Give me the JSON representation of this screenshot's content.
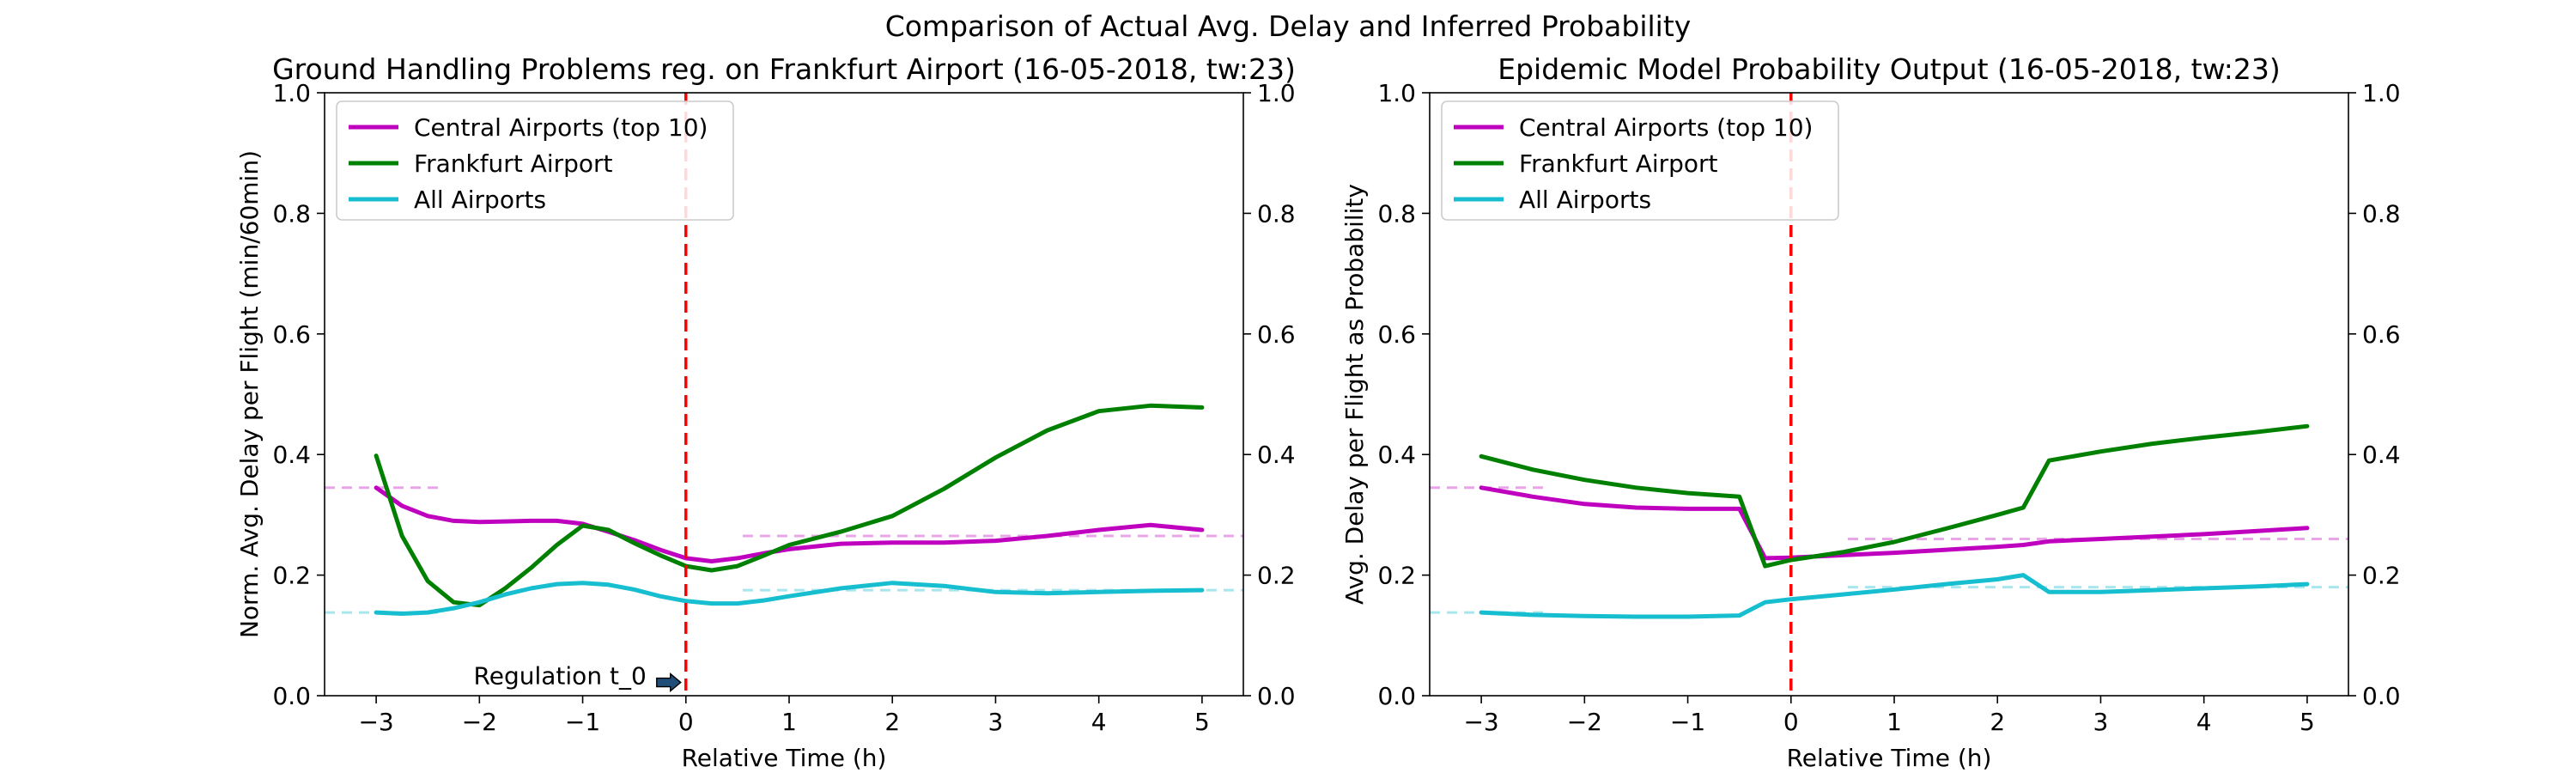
{
  "figure": {
    "suptitle": "Comparison of Actual Avg. Delay and Inferred Probability"
  },
  "colors": {
    "central": "#bf00bf",
    "frankfurt": "#008000",
    "all": "#17becf",
    "central_baseline": "#e8a6e8",
    "all_baseline": "#a8e6ee",
    "regulation_line": "#ff0000",
    "arrow_fill": "#1f4e79"
  },
  "chart_data": [
    {
      "type": "line",
      "title": "Ground Handling Problems reg. on Frankfurt Airport (16-05-2018, tw:23)",
      "xlabel": "Relative Time (h)",
      "ylabel": "Norm. Avg. Delay per Flight (min/60min)",
      "xlim": [
        -3.5,
        5.4
      ],
      "ylim": [
        0,
        1.0
      ],
      "xticks": [
        -3,
        -2,
        -1,
        0,
        1,
        2,
        3,
        4,
        5
      ],
      "xtick_labels": [
        "−3",
        "−2",
        "−1",
        "0",
        "1",
        "2",
        "3",
        "4",
        "5"
      ],
      "yticks": [
        0,
        0.2,
        0.4,
        0.6,
        0.8,
        1.0
      ],
      "ytick_labels": [
        "0.0",
        "0.2",
        "0.4",
        "0.6",
        "0.8",
        "1.0"
      ],
      "right_ytick_labels": [
        "0.0",
        "0.2",
        "0.4",
        "0.6",
        "0.8",
        "1.0"
      ],
      "grid": false,
      "legend_position": "top-left",
      "vline_x": 0,
      "annotation": {
        "text": "Regulation t_0",
        "x": -0.05,
        "y": 0.022
      },
      "series": [
        {
          "name": "Central Airports (top 10)",
          "color_key": "central",
          "x": [
            -3,
            -2.75,
            -2.5,
            -2.25,
            -2,
            -1.75,
            -1.5,
            -1.25,
            -1,
            -0.75,
            -0.5,
            -0.25,
            0,
            0.25,
            0.5,
            0.75,
            1,
            1.5,
            2,
            2.5,
            3,
            3.5,
            4,
            4.5,
            5
          ],
          "values": [
            0.345,
            0.315,
            0.298,
            0.29,
            0.288,
            0.289,
            0.29,
            0.29,
            0.285,
            0.272,
            0.258,
            0.242,
            0.228,
            0.223,
            0.228,
            0.236,
            0.243,
            0.252,
            0.254,
            0.254,
            0.257,
            0.265,
            0.275,
            0.283,
            0.275
          ]
        },
        {
          "name": "Frankfurt Airport",
          "color_key": "frankfurt",
          "x": [
            -3,
            -2.75,
            -2.5,
            -2.25,
            -2,
            -1.75,
            -1.5,
            -1.25,
            -1,
            -0.75,
            -0.5,
            -0.25,
            0,
            0.25,
            0.5,
            0.75,
            1,
            1.5,
            2,
            2.5,
            3,
            3.5,
            4,
            4.5,
            5
          ],
          "values": [
            0.398,
            0.265,
            0.19,
            0.155,
            0.15,
            0.178,
            0.212,
            0.25,
            0.282,
            0.275,
            0.253,
            0.233,
            0.215,
            0.208,
            0.215,
            0.232,
            0.25,
            0.272,
            0.298,
            0.343,
            0.395,
            0.44,
            0.472,
            0.481,
            0.478
          ]
        },
        {
          "name": "All Airports",
          "color_key": "all",
          "x": [
            -3,
            -2.75,
            -2.5,
            -2.25,
            -2,
            -1.75,
            -1.5,
            -1.25,
            -1,
            -0.75,
            -0.5,
            -0.25,
            0,
            0.25,
            0.5,
            0.75,
            1,
            1.5,
            2,
            2.5,
            3,
            3.5,
            4,
            4.5,
            5
          ],
          "values": [
            0.138,
            0.136,
            0.138,
            0.145,
            0.155,
            0.168,
            0.178,
            0.185,
            0.187,
            0.184,
            0.176,
            0.165,
            0.157,
            0.153,
            0.153,
            0.158,
            0.165,
            0.178,
            0.187,
            0.182,
            0.172,
            0.17,
            0.172,
            0.174,
            0.175
          ]
        }
      ],
      "baselines": [
        {
          "color_key": "central_baseline",
          "x": [
            -3.5,
            -2.4
          ],
          "y": 0.345
        },
        {
          "color_key": "central_baseline",
          "x": [
            0.55,
            5.4
          ],
          "y": 0.265
        },
        {
          "color_key": "all_baseline",
          "x": [
            -3.5,
            -2.4
          ],
          "y": 0.138
        },
        {
          "color_key": "all_baseline",
          "x": [
            0.55,
            5.4
          ],
          "y": 0.175
        }
      ]
    },
    {
      "type": "line",
      "title": "Epidemic Model Probability Output (16-05-2018, tw:23)",
      "xlabel": "Relative Time (h)",
      "ylabel": "Avg. Delay per Flight as Probability",
      "xlim": [
        -3.5,
        5.4
      ],
      "ylim": [
        0,
        1.0
      ],
      "xticks": [
        -3,
        -2,
        -1,
        0,
        1,
        2,
        3,
        4,
        5
      ],
      "xtick_labels": [
        "−3",
        "−2",
        "−1",
        "0",
        "1",
        "2",
        "3",
        "4",
        "5"
      ],
      "yticks": [
        0,
        0.2,
        0.4,
        0.6,
        0.8,
        1.0
      ],
      "ytick_labels": [
        "0.0",
        "0.2",
        "0.4",
        "0.6",
        "0.8",
        "1.0"
      ],
      "right_ytick_labels": [
        "0.0",
        "0.2",
        "0.4",
        "0.6",
        "0.8",
        "1.0"
      ],
      "grid": false,
      "legend_position": "top-left",
      "vline_x": 0,
      "series": [
        {
          "name": "Central Airports (top 10)",
          "color_key": "central",
          "x": [
            -3,
            -2.5,
            -2,
            -1.5,
            -1,
            -0.5,
            -0.25,
            0,
            0.5,
            1,
            1.5,
            2,
            2.25,
            2.5,
            3,
            3.5,
            4,
            4.5,
            5
          ],
          "values": [
            0.345,
            0.33,
            0.318,
            0.312,
            0.31,
            0.31,
            0.228,
            0.229,
            0.233,
            0.237,
            0.242,
            0.247,
            0.25,
            0.256,
            0.26,
            0.264,
            0.268,
            0.273,
            0.278
          ]
        },
        {
          "name": "Frankfurt Airport",
          "color_key": "frankfurt",
          "x": [
            -3,
            -2.5,
            -2,
            -1.5,
            -1,
            -0.5,
            -0.25,
            0,
            0.5,
            1,
            1.5,
            2,
            2.25,
            2.5,
            3,
            3.5,
            4,
            4.5,
            5
          ],
          "values": [
            0.397,
            0.375,
            0.358,
            0.345,
            0.336,
            0.33,
            0.215,
            0.225,
            0.238,
            0.255,
            0.277,
            0.3,
            0.312,
            0.39,
            0.405,
            0.418,
            0.428,
            0.437,
            0.447
          ]
        },
        {
          "name": "All Airports",
          "color_key": "all",
          "x": [
            -3,
            -2.5,
            -2,
            -1.5,
            -1,
            -0.5,
            -0.25,
            0,
            0.5,
            1,
            1.5,
            2,
            2.25,
            2.5,
            3,
            3.5,
            4,
            4.5,
            5
          ],
          "values": [
            0.138,
            0.134,
            0.132,
            0.131,
            0.131,
            0.133,
            0.155,
            0.16,
            0.168,
            0.176,
            0.185,
            0.193,
            0.2,
            0.172,
            0.172,
            0.175,
            0.178,
            0.181,
            0.185
          ]
        }
      ],
      "baselines": [
        {
          "color_key": "central_baseline",
          "x": [
            -3.5,
            -2.4
          ],
          "y": 0.345
        },
        {
          "color_key": "central_baseline",
          "x": [
            0.55,
            5.4
          ],
          "y": 0.26
        },
        {
          "color_key": "all_baseline",
          "x": [
            -3.5,
            -2.4
          ],
          "y": 0.138
        },
        {
          "color_key": "all_baseline",
          "x": [
            0.55,
            5.4
          ],
          "y": 0.18
        }
      ]
    }
  ]
}
